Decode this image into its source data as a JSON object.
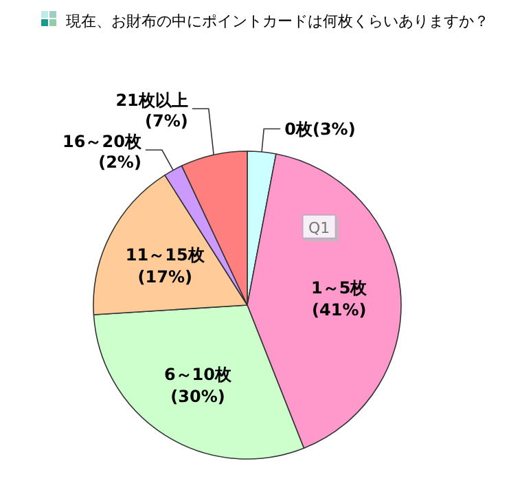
{
  "chart_data": {
    "type": "pie",
    "title": "現在、お財布の中にポイントカードは何枚くらいありますか？",
    "categories": [
      "0枚",
      "1～5枚",
      "6～10枚",
      "11～15枚",
      "16～20枚",
      "21枚以上"
    ],
    "values": [
      3,
      41,
      30,
      17,
      2,
      7
    ],
    "value_labels": [
      "(3%)",
      "(41%)",
      "(30%)",
      "(17%)",
      "(2%)",
      "(7%)"
    ],
    "colors": [
      "#ccffff",
      "#ff99cc",
      "#ccffcc",
      "#ffcc99",
      "#cc99ff",
      "#ff7f7f"
    ],
    "annotations": [
      "Q1"
    ]
  }
}
